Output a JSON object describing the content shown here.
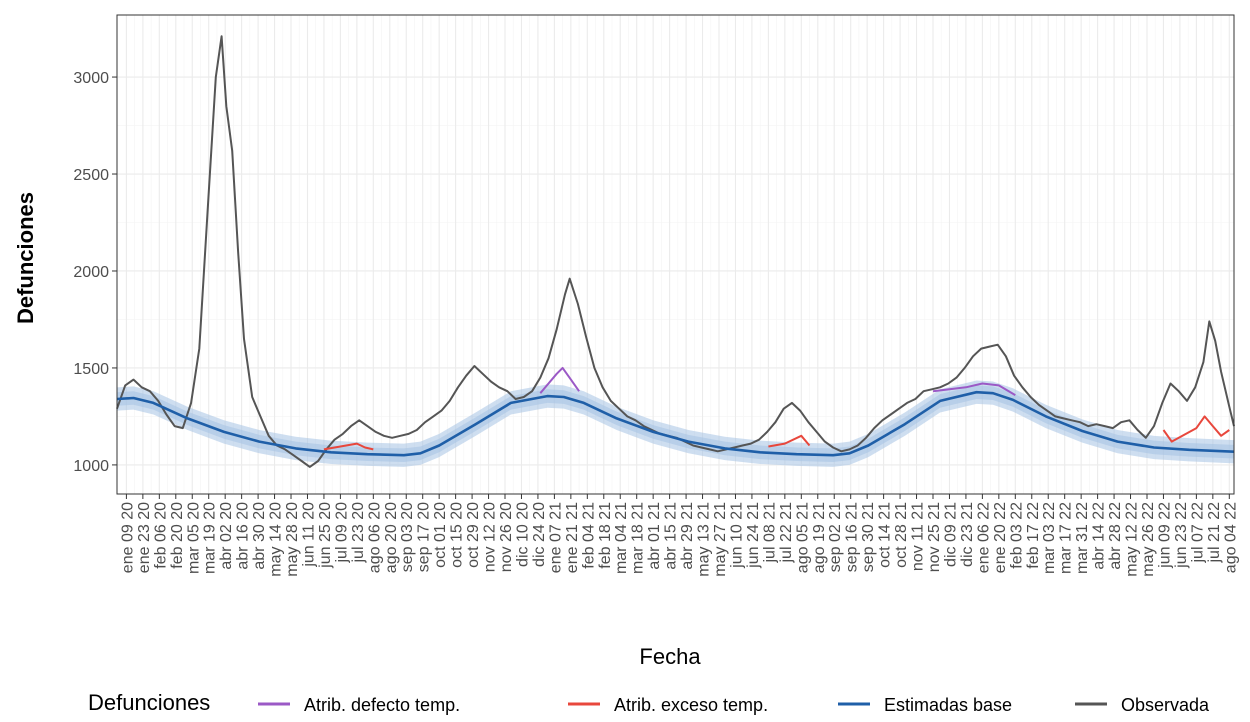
{
  "chart_data": {
    "type": "line",
    "title": "",
    "xlabel": "Fecha",
    "ylabel": "Defunciones",
    "x_range": [
      "2020-01-01",
      "2022-08-08"
    ],
    "ylim": [
      850,
      3320
    ],
    "yticks": [
      1000,
      1500,
      2000,
      2500,
      3000
    ],
    "grid": true,
    "legend_position": "bottom",
    "x_tick_labels": [
      "ene 09 20",
      "ene 23 20",
      "feb 06 20",
      "feb 20 20",
      "mar 05 20",
      "mar 19 20",
      "abr 02 20",
      "abr 16 20",
      "abr 30 20",
      "may 14 20",
      "may 28 20",
      "jun 11 20",
      "jun 25 20",
      "jul 09 20",
      "jul 23 20",
      "ago 06 20",
      "ago 20 20",
      "sep 03 20",
      "sep 17 20",
      "oct 01 20",
      "oct 15 20",
      "oct 29 20",
      "nov 12 20",
      "nov 26 20",
      "dic 10 20",
      "dic 24 20",
      "ene 07 21",
      "ene 21 21",
      "feb 04 21",
      "feb 18 21",
      "mar 04 21",
      "mar 18 21",
      "abr 01 21",
      "abr 15 21",
      "abr 29 21",
      "may 13 21",
      "may 27 21",
      "jun 10 21",
      "jun 24 21",
      "jul 08 21",
      "jul 22 21",
      "ago 05 21",
      "ago 19 21",
      "sep 02 21",
      "sep 16 21",
      "sep 30 21",
      "oct 14 21",
      "oct 28 21",
      "nov 11 21",
      "nov 25 21",
      "dic 09 21",
      "dic 23 21",
      "ene 06 22",
      "ene 20 22",
      "feb 03 22",
      "feb 17 22",
      "mar 03 22",
      "mar 17 22",
      "mar 31 22",
      "abr 14 22",
      "abr 28 22",
      "may 12 22",
      "may 26 22",
      "jun 09 22",
      "jun 23 22",
      "jul 07 22",
      "jul 21 22",
      "ago 04 22"
    ],
    "legend": {
      "title": "Defunciones",
      "items": [
        {
          "label": "Atrib. defecto temp.",
          "color": "#9b59c6"
        },
        {
          "label": "Atrib. exceso temp.",
          "color": "#e8473c"
        },
        {
          "label": "Estimadas base",
          "color": "#1f5fa8"
        },
        {
          "label": "Observada",
          "color": "#555555"
        }
      ]
    },
    "band_color": "#a6c3e3",
    "series": [
      {
        "name": "Observada",
        "color": "#555555",
        "points": [
          [
            "2020-01-01",
            1290
          ],
          [
            "2020-01-08",
            1410
          ],
          [
            "2020-01-15",
            1440
          ],
          [
            "2020-01-22",
            1400
          ],
          [
            "2020-01-29",
            1380
          ],
          [
            "2020-02-05",
            1330
          ],
          [
            "2020-02-12",
            1260
          ],
          [
            "2020-02-19",
            1200
          ],
          [
            "2020-02-26",
            1190
          ],
          [
            "2020-03-04",
            1320
          ],
          [
            "2020-03-11",
            1600
          ],
          [
            "2020-03-18",
            2300
          ],
          [
            "2020-03-25",
            3000
          ],
          [
            "2020-03-30",
            3210
          ],
          [
            "2020-04-03",
            2850
          ],
          [
            "2020-04-08",
            2620
          ],
          [
            "2020-04-13",
            2100
          ],
          [
            "2020-04-18",
            1650
          ],
          [
            "2020-04-25",
            1350
          ],
          [
            "2020-05-02",
            1250
          ],
          [
            "2020-05-09",
            1150
          ],
          [
            "2020-05-16",
            1100
          ],
          [
            "2020-05-23",
            1080
          ],
          [
            "2020-05-30",
            1050
          ],
          [
            "2020-06-06",
            1020
          ],
          [
            "2020-06-13",
            990
          ],
          [
            "2020-06-20",
            1020
          ],
          [
            "2020-06-27",
            1080
          ],
          [
            "2020-07-04",
            1130
          ],
          [
            "2020-07-11",
            1160
          ],
          [
            "2020-07-18",
            1200
          ],
          [
            "2020-07-25",
            1230
          ],
          [
            "2020-08-01",
            1200
          ],
          [
            "2020-08-08",
            1170
          ],
          [
            "2020-08-15",
            1150
          ],
          [
            "2020-08-22",
            1140
          ],
          [
            "2020-08-29",
            1150
          ],
          [
            "2020-09-05",
            1160
          ],
          [
            "2020-09-12",
            1180
          ],
          [
            "2020-09-19",
            1220
          ],
          [
            "2020-09-26",
            1250
          ],
          [
            "2020-10-03",
            1280
          ],
          [
            "2020-10-10",
            1330
          ],
          [
            "2020-10-17",
            1400
          ],
          [
            "2020-10-24",
            1460
          ],
          [
            "2020-10-31",
            1510
          ],
          [
            "2020-11-07",
            1470
          ],
          [
            "2020-11-14",
            1430
          ],
          [
            "2020-11-21",
            1400
          ],
          [
            "2020-11-28",
            1380
          ],
          [
            "2020-12-05",
            1340
          ],
          [
            "2020-12-12",
            1350
          ],
          [
            "2020-12-19",
            1380
          ],
          [
            "2020-12-26",
            1450
          ],
          [
            "2021-01-02",
            1550
          ],
          [
            "2021-01-09",
            1700
          ],
          [
            "2021-01-16",
            1880
          ],
          [
            "2021-01-20",
            1960
          ],
          [
            "2021-01-27",
            1830
          ],
          [
            "2021-02-03",
            1660
          ],
          [
            "2021-02-10",
            1500
          ],
          [
            "2021-02-17",
            1400
          ],
          [
            "2021-02-24",
            1330
          ],
          [
            "2021-03-03",
            1290
          ],
          [
            "2021-03-10",
            1250
          ],
          [
            "2021-03-17",
            1230
          ],
          [
            "2021-03-24",
            1200
          ],
          [
            "2021-03-31",
            1180
          ],
          [
            "2021-04-07",
            1160
          ],
          [
            "2021-04-14",
            1150
          ],
          [
            "2021-04-21",
            1140
          ],
          [
            "2021-04-28",
            1120
          ],
          [
            "2021-05-05",
            1100
          ],
          [
            "2021-05-12",
            1090
          ],
          [
            "2021-05-19",
            1080
          ],
          [
            "2021-05-26",
            1070
          ],
          [
            "2021-06-02",
            1080
          ],
          [
            "2021-06-09",
            1090
          ],
          [
            "2021-06-16",
            1100
          ],
          [
            "2021-06-23",
            1110
          ],
          [
            "2021-06-30",
            1130
          ],
          [
            "2021-07-07",
            1170
          ],
          [
            "2021-07-14",
            1220
          ],
          [
            "2021-07-21",
            1290
          ],
          [
            "2021-07-28",
            1320
          ],
          [
            "2021-08-04",
            1280
          ],
          [
            "2021-08-11",
            1220
          ],
          [
            "2021-08-18",
            1170
          ],
          [
            "2021-08-25",
            1120
          ],
          [
            "2021-09-01",
            1090
          ],
          [
            "2021-09-08",
            1070
          ],
          [
            "2021-09-15",
            1080
          ],
          [
            "2021-09-22",
            1100
          ],
          [
            "2021-09-29",
            1140
          ],
          [
            "2021-10-06",
            1190
          ],
          [
            "2021-10-13",
            1230
          ],
          [
            "2021-10-20",
            1260
          ],
          [
            "2021-10-27",
            1290
          ],
          [
            "2021-11-03",
            1320
          ],
          [
            "2021-11-10",
            1340
          ],
          [
            "2021-11-17",
            1380
          ],
          [
            "2021-11-24",
            1390
          ],
          [
            "2021-12-01",
            1400
          ],
          [
            "2021-12-08",
            1420
          ],
          [
            "2021-12-15",
            1450
          ],
          [
            "2021-12-22",
            1500
          ],
          [
            "2021-12-29",
            1560
          ],
          [
            "2022-01-05",
            1600
          ],
          [
            "2022-01-12",
            1610
          ],
          [
            "2022-01-19",
            1620
          ],
          [
            "2022-01-26",
            1560
          ],
          [
            "2022-02-02",
            1460
          ],
          [
            "2022-02-09",
            1400
          ],
          [
            "2022-02-16",
            1350
          ],
          [
            "2022-02-23",
            1310
          ],
          [
            "2022-03-02",
            1280
          ],
          [
            "2022-03-09",
            1250
          ],
          [
            "2022-03-16",
            1240
          ],
          [
            "2022-03-23",
            1230
          ],
          [
            "2022-03-30",
            1220
          ],
          [
            "2022-04-06",
            1200
          ],
          [
            "2022-04-13",
            1210
          ],
          [
            "2022-04-20",
            1200
          ],
          [
            "2022-04-27",
            1190
          ],
          [
            "2022-05-04",
            1220
          ],
          [
            "2022-05-11",
            1230
          ],
          [
            "2022-05-18",
            1180
          ],
          [
            "2022-05-25",
            1140
          ],
          [
            "2022-06-01",
            1200
          ],
          [
            "2022-06-08",
            1320
          ],
          [
            "2022-06-15",
            1420
          ],
          [
            "2022-06-22",
            1380
          ],
          [
            "2022-06-29",
            1330
          ],
          [
            "2022-07-06",
            1400
          ],
          [
            "2022-07-13",
            1530
          ],
          [
            "2022-07-18",
            1740
          ],
          [
            "2022-07-23",
            1640
          ],
          [
            "2022-07-28",
            1480
          ],
          [
            "2022-08-04",
            1300
          ],
          [
            "2022-08-08",
            1200
          ]
        ]
      },
      {
        "name": "Estimadas base",
        "color": "#1f5fa8",
        "points": [
          [
            "2020-01-01",
            1340
          ],
          [
            "2020-01-15",
            1345
          ],
          [
            "2020-02-01",
            1320
          ],
          [
            "2020-03-01",
            1240
          ],
          [
            "2020-04-01",
            1170
          ],
          [
            "2020-05-01",
            1120
          ],
          [
            "2020-06-01",
            1085
          ],
          [
            "2020-07-01",
            1065
          ],
          [
            "2020-08-01",
            1055
          ],
          [
            "2020-09-01",
            1050
          ],
          [
            "2020-09-15",
            1060
          ],
          [
            "2020-10-01",
            1100
          ],
          [
            "2020-11-01",
            1210
          ],
          [
            "2020-12-01",
            1320
          ],
          [
            "2021-01-01",
            1355
          ],
          [
            "2021-01-15",
            1350
          ],
          [
            "2021-02-01",
            1320
          ],
          [
            "2021-03-01",
            1240
          ],
          [
            "2021-04-01",
            1170
          ],
          [
            "2021-05-01",
            1120
          ],
          [
            "2021-06-01",
            1085
          ],
          [
            "2021-07-01",
            1065
          ],
          [
            "2021-08-01",
            1055
          ],
          [
            "2021-09-01",
            1050
          ],
          [
            "2021-09-15",
            1060
          ],
          [
            "2021-10-01",
            1100
          ],
          [
            "2021-11-01",
            1210
          ],
          [
            "2021-12-01",
            1330
          ],
          [
            "2022-01-01",
            1375
          ],
          [
            "2022-01-15",
            1370
          ],
          [
            "2022-02-01",
            1335
          ],
          [
            "2022-03-01",
            1250
          ],
          [
            "2022-04-01",
            1175
          ],
          [
            "2022-05-01",
            1120
          ],
          [
            "2022-06-01",
            1090
          ],
          [
            "2022-07-01",
            1078
          ],
          [
            "2022-08-08",
            1068
          ]
        ]
      },
      {
        "name": "Atrib. defecto temp.",
        "color": "#9b59c6",
        "points": [
          [
            "2020-12-26",
            1370
          ],
          [
            "2021-01-02",
            1420
          ],
          [
            "2021-01-09",
            1470
          ],
          [
            "2021-01-14",
            1500
          ],
          [
            "2021-01-21",
            1440
          ],
          [
            "2021-01-28",
            1380
          ],
          [
            "2021-11-25",
            1380
          ],
          [
            "2021-12-09",
            1390
          ],
          [
            "2021-12-23",
            1400
          ],
          [
            "2022-01-06",
            1420
          ],
          [
            "2022-01-20",
            1410
          ],
          [
            "2022-02-03",
            1360
          ]
        ]
      },
      {
        "name": "Atrib. exceso temp.",
        "color": "#e8473c",
        "points": [
          [
            "2020-06-25",
            1080
          ],
          [
            "2020-07-09",
            1095
          ],
          [
            "2020-07-23",
            1110
          ],
          [
            "2020-07-30",
            1090
          ],
          [
            "2020-08-06",
            1080
          ],
          [
            "2021-07-08",
            1095
          ],
          [
            "2021-07-22",
            1110
          ],
          [
            "2021-08-05",
            1150
          ],
          [
            "2021-08-12",
            1100
          ],
          [
            "2022-06-09",
            1180
          ],
          [
            "2022-06-16",
            1120
          ],
          [
            "2022-07-07",
            1190
          ],
          [
            "2022-07-14",
            1250
          ],
          [
            "2022-07-21",
            1200
          ],
          [
            "2022-07-28",
            1150
          ],
          [
            "2022-08-04",
            1180
          ]
        ]
      }
    ]
  }
}
